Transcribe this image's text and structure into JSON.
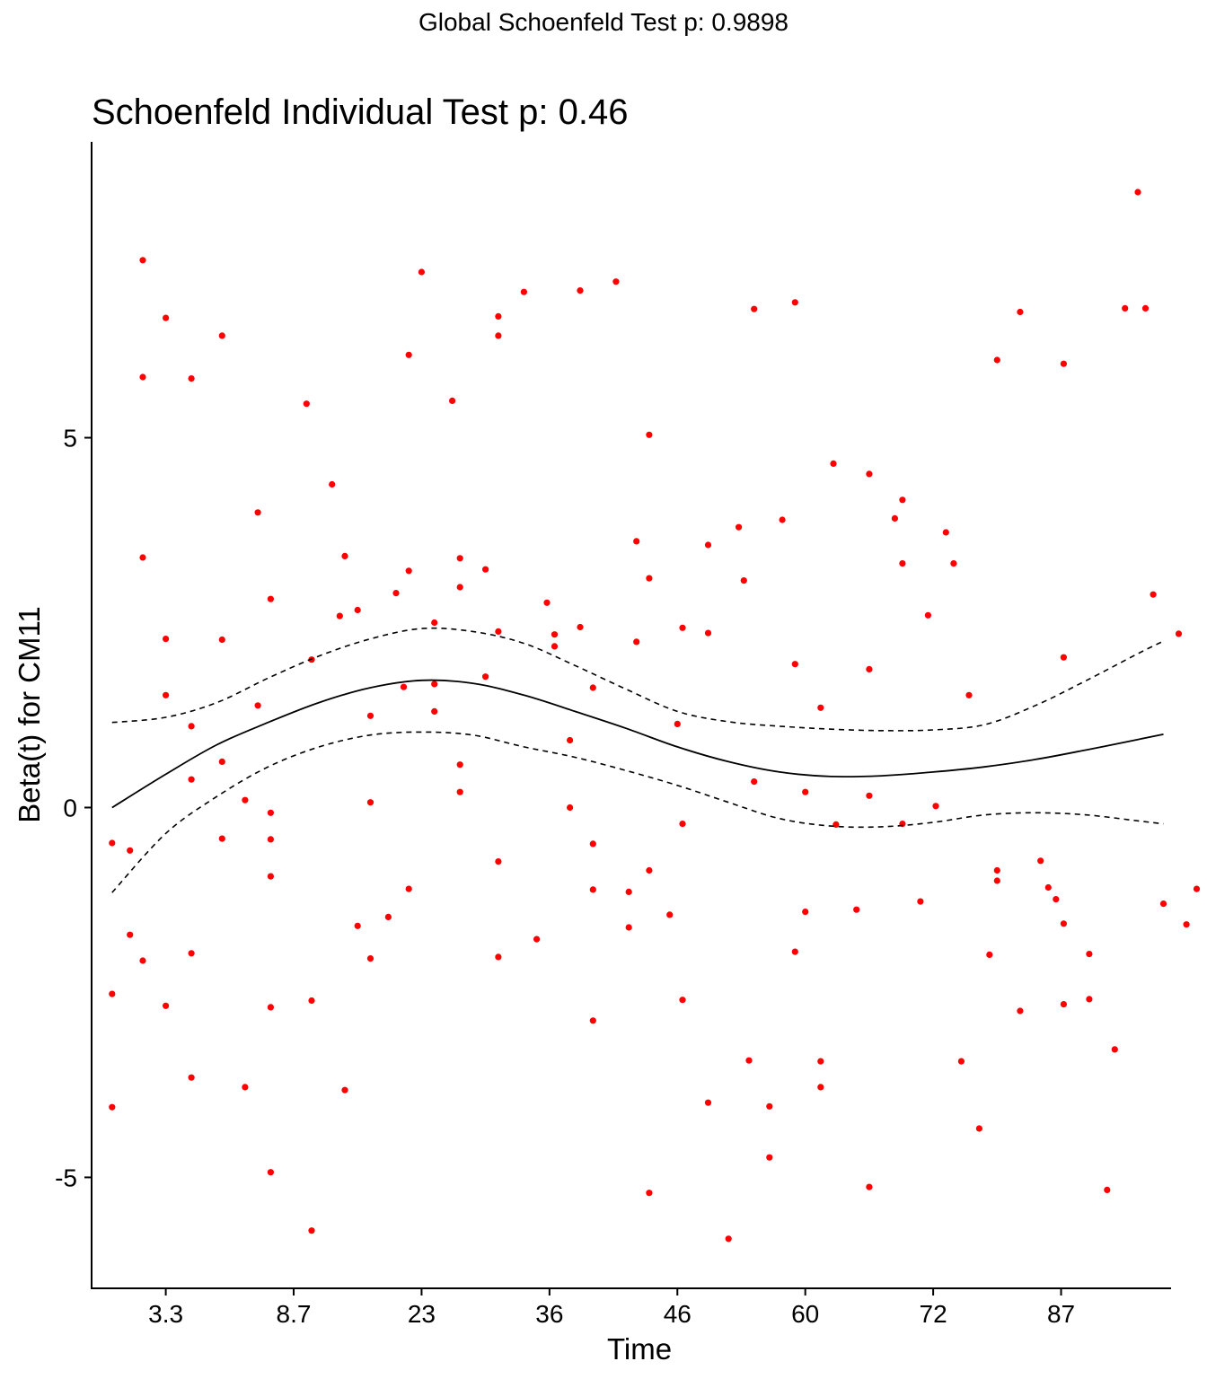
{
  "chart_data": {
    "type": "scatter",
    "supertitle": "Global Schoenfeld Test p: 0.9898",
    "title": "Schoenfeld Individual Test p: 0.46",
    "xlabel": "Time",
    "ylabel": "Beta(t) for CM11",
    "x_ticks": [
      {
        "label": "3.3",
        "pos": 3
      },
      {
        "label": "8.7",
        "pos": 8
      },
      {
        "label": "23",
        "pos": 13
      },
      {
        "label": "36",
        "pos": 18
      },
      {
        "label": "46",
        "pos": 23
      },
      {
        "label": "60",
        "pos": 28
      },
      {
        "label": "72",
        "pos": 33
      },
      {
        "label": "87",
        "pos": 38
      }
    ],
    "y_ticks": [
      {
        "label": "5",
        "value": 5
      },
      {
        "label": "0",
        "value": 0
      },
      {
        "label": "-5",
        "value": -5
      }
    ],
    "xlim": [
      0.1,
      42.3
    ],
    "ylim": [
      -6.5,
      9.0
    ],
    "grid": false,
    "point_color": "#ff0000",
    "line_color": "#000000",
    "points": [
      [
        0.9,
        -0.48
      ],
      [
        0.9,
        -2.52
      ],
      [
        0.9,
        -4.05
      ],
      [
        1.6,
        -0.58
      ],
      [
        1.6,
        -1.72
      ],
      [
        2.1,
        7.4
      ],
      [
        2.1,
        5.82
      ],
      [
        2.1,
        3.38
      ],
      [
        2.1,
        -2.07
      ],
      [
        3.0,
        6.62
      ],
      [
        3.0,
        2.28
      ],
      [
        3.0,
        1.52
      ],
      [
        3.0,
        -2.68
      ],
      [
        4.0,
        5.8
      ],
      [
        4.0,
        1.1
      ],
      [
        4.0,
        0.38
      ],
      [
        4.0,
        -1.97
      ],
      [
        4.0,
        -3.65
      ],
      [
        5.2,
        6.38
      ],
      [
        5.2,
        2.27
      ],
      [
        5.2,
        0.62
      ],
      [
        5.2,
        -0.42
      ],
      [
        6.1,
        0.1
      ],
      [
        6.1,
        -3.78
      ],
      [
        6.6,
        3.99
      ],
      [
        6.6,
        1.38
      ],
      [
        7.1,
        2.82
      ],
      [
        7.1,
        -0.07
      ],
      [
        7.1,
        -0.43
      ],
      [
        7.1,
        -0.93
      ],
      [
        7.1,
        -2.7
      ],
      [
        7.1,
        -4.93
      ],
      [
        8.5,
        5.46
      ],
      [
        8.7,
        2.0
      ],
      [
        8.7,
        -2.61
      ],
      [
        8.7,
        -5.72
      ],
      [
        9.5,
        4.37
      ],
      [
        9.8,
        2.59
      ],
      [
        10.0,
        3.4
      ],
      [
        10.0,
        -3.82
      ],
      [
        10.5,
        2.67
      ],
      [
        10.5,
        -1.6
      ],
      [
        11.0,
        1.24
      ],
      [
        11.0,
        0.07
      ],
      [
        11.0,
        -2.04
      ],
      [
        11.7,
        -1.48
      ],
      [
        12.0,
        2.9
      ],
      [
        12.3,
        1.63
      ],
      [
        12.5,
        6.12
      ],
      [
        12.5,
        3.2
      ],
      [
        12.5,
        -1.1
      ],
      [
        13.0,
        7.24
      ],
      [
        13.5,
        2.5
      ],
      [
        13.5,
        1.67
      ],
      [
        13.5,
        1.3
      ],
      [
        14.2,
        5.5
      ],
      [
        14.5,
        3.37
      ],
      [
        14.5,
        2.98
      ],
      [
        14.5,
        0.58
      ],
      [
        14.5,
        0.21
      ],
      [
        15.5,
        3.22
      ],
      [
        15.5,
        1.77
      ],
      [
        16.0,
        6.64
      ],
      [
        16.0,
        6.38
      ],
      [
        16.0,
        2.38
      ],
      [
        16.0,
        -0.73
      ],
      [
        16.0,
        -2.02
      ],
      [
        17.0,
        6.97
      ],
      [
        17.5,
        -1.78
      ],
      [
        17.9,
        2.77
      ],
      [
        18.2,
        2.18
      ],
      [
        18.2,
        2.34
      ],
      [
        18.8,
        0.0
      ],
      [
        18.8,
        0.91
      ],
      [
        19.2,
        6.99
      ],
      [
        19.2,
        2.44
      ],
      [
        19.7,
        1.62
      ],
      [
        19.7,
        -0.49
      ],
      [
        19.7,
        -1.11
      ],
      [
        19.7,
        -2.88
      ],
      [
        20.6,
        7.11
      ],
      [
        21.1,
        -1.14
      ],
      [
        21.1,
        -1.62
      ],
      [
        21.4,
        2.24
      ],
      [
        21.4,
        3.6
      ],
      [
        21.9,
        5.04
      ],
      [
        21.9,
        3.1
      ],
      [
        21.9,
        -0.85
      ],
      [
        21.9,
        -5.21
      ],
      [
        22.7,
        -1.45
      ],
      [
        23.0,
        1.13
      ],
      [
        23.2,
        2.43
      ],
      [
        23.2,
        -0.22
      ],
      [
        23.2,
        -2.6
      ],
      [
        24.2,
        3.55
      ],
      [
        24.2,
        2.36
      ],
      [
        24.2,
        -3.99
      ],
      [
        25.0,
        -5.83
      ],
      [
        25.4,
        3.79
      ],
      [
        25.6,
        3.07
      ],
      [
        25.8,
        -3.42
      ],
      [
        26.0,
        6.74
      ],
      [
        26.0,
        0.35
      ],
      [
        26.6,
        -4.04
      ],
      [
        26.6,
        -4.73
      ],
      [
        27.1,
        3.89
      ],
      [
        27.6,
        1.94
      ],
      [
        27.6,
        6.83
      ],
      [
        27.6,
        -1.95
      ],
      [
        28.0,
        0.21
      ],
      [
        28.0,
        -1.41
      ],
      [
        28.6,
        1.35
      ],
      [
        28.6,
        -3.43
      ],
      [
        28.6,
        -3.78
      ],
      [
        29.2,
        -0.23
      ],
      [
        29.1,
        4.65
      ],
      [
        30.0,
        -1.38
      ],
      [
        30.5,
        4.51
      ],
      [
        30.5,
        1.87
      ],
      [
        30.5,
        0.16
      ],
      [
        30.5,
        -5.13
      ],
      [
        31.5,
        3.91
      ],
      [
        31.8,
        4.16
      ],
      [
        31.8,
        3.3
      ],
      [
        31.8,
        -0.22
      ],
      [
        32.5,
        -1.27
      ],
      [
        32.8,
        2.6
      ],
      [
        33.1,
        0.02
      ],
      [
        33.5,
        3.72
      ],
      [
        33.8,
        3.3
      ],
      [
        34.1,
        -3.43
      ],
      [
        34.4,
        1.52
      ],
      [
        34.8,
        -4.34
      ],
      [
        35.2,
        -1.99
      ],
      [
        35.5,
        6.05
      ],
      [
        35.5,
        -0.85
      ],
      [
        35.5,
        -0.99
      ],
      [
        36.4,
        6.7
      ],
      [
        36.4,
        -2.75
      ],
      [
        37.2,
        -0.72
      ],
      [
        37.5,
        -1.08
      ],
      [
        37.8,
        -1.24
      ],
      [
        38.1,
        6.0
      ],
      [
        38.1,
        2.03
      ],
      [
        38.1,
        -1.57
      ],
      [
        38.1,
        -2.66
      ],
      [
        39.1,
        -1.98
      ],
      [
        39.1,
        -2.59
      ],
      [
        39.8,
        -5.17
      ],
      [
        40.1,
        -3.27
      ],
      [
        40.5,
        6.75
      ],
      [
        41.0,
        8.32
      ],
      [
        41.3,
        6.75
      ],
      [
        41.6,
        2.88
      ],
      [
        42.0,
        -1.3
      ],
      [
        42.6,
        2.35
      ],
      [
        42.9,
        -1.58
      ],
      [
        43.3,
        -1.1
      ]
    ],
    "fit_line": [
      [
        0.9,
        0.0
      ],
      [
        3.0,
        0.45
      ],
      [
        5.0,
        0.85
      ],
      [
        7.0,
        1.15
      ],
      [
        9.0,
        1.42
      ],
      [
        11.0,
        1.62
      ],
      [
        13.0,
        1.72
      ],
      [
        15.0,
        1.68
      ],
      [
        17.0,
        1.52
      ],
      [
        19.0,
        1.3
      ],
      [
        21.0,
        1.07
      ],
      [
        23.0,
        0.82
      ],
      [
        25.0,
        0.62
      ],
      [
        27.0,
        0.48
      ],
      [
        29.0,
        0.42
      ],
      [
        31.0,
        0.43
      ],
      [
        33.0,
        0.48
      ],
      [
        35.0,
        0.55
      ],
      [
        37.0,
        0.65
      ],
      [
        39.0,
        0.78
      ],
      [
        41.0,
        0.92
      ],
      [
        42.0,
        0.99
      ]
    ],
    "upper_band": [
      [
        0.9,
        1.15
      ],
      [
        3.0,
        1.22
      ],
      [
        5.0,
        1.42
      ],
      [
        7.0,
        1.75
      ],
      [
        9.0,
        2.05
      ],
      [
        11.0,
        2.28
      ],
      [
        13.0,
        2.42
      ],
      [
        15.0,
        2.38
      ],
      [
        17.0,
        2.22
      ],
      [
        19.0,
        1.92
      ],
      [
        21.0,
        1.6
      ],
      [
        23.0,
        1.3
      ],
      [
        25.0,
        1.16
      ],
      [
        27.0,
        1.1
      ],
      [
        29.0,
        1.06
      ],
      [
        31.0,
        1.04
      ],
      [
        33.0,
        1.05
      ],
      [
        35.0,
        1.12
      ],
      [
        37.0,
        1.38
      ],
      [
        39.0,
        1.72
      ],
      [
        41.0,
        2.08
      ],
      [
        42.0,
        2.25
      ]
    ],
    "lower_band": [
      [
        0.9,
        -1.15
      ],
      [
        3.0,
        -0.35
      ],
      [
        5.0,
        0.15
      ],
      [
        7.0,
        0.55
      ],
      [
        9.0,
        0.82
      ],
      [
        11.0,
        0.98
      ],
      [
        13.0,
        1.02
      ],
      [
        15.0,
        0.98
      ],
      [
        17.0,
        0.82
      ],
      [
        19.0,
        0.68
      ],
      [
        21.0,
        0.5
      ],
      [
        23.0,
        0.3
      ],
      [
        25.0,
        0.07
      ],
      [
        27.0,
        -0.15
      ],
      [
        29.0,
        -0.25
      ],
      [
        31.0,
        -0.26
      ],
      [
        33.0,
        -0.2
      ],
      [
        35.0,
        -0.1
      ],
      [
        37.0,
        -0.07
      ],
      [
        39.0,
        -0.1
      ],
      [
        41.0,
        -0.18
      ],
      [
        42.0,
        -0.22
      ]
    ]
  }
}
